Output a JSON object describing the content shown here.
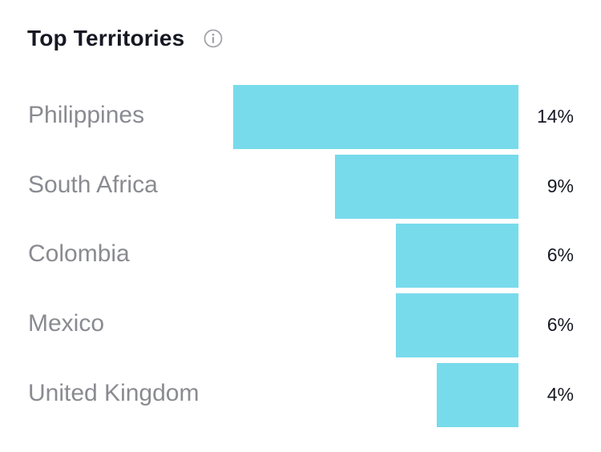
{
  "header": {
    "title": "Top Territories",
    "info_icon": "info-icon"
  },
  "colors": {
    "bar": "#78dbec",
    "label": "#8a8b91",
    "value": "#161823",
    "title": "#161823"
  },
  "chart_data": {
    "type": "bar",
    "orientation": "horizontal",
    "title": "Top Territories",
    "categories": [
      "Philippines",
      "South Africa",
      "Colombia",
      "Mexico",
      "United Kingdom"
    ],
    "values": [
      14,
      9,
      6,
      6,
      4
    ],
    "value_labels": [
      "14%",
      "9%",
      "6%",
      "6%",
      "4%"
    ],
    "unit": "%",
    "xlabel": "",
    "ylabel": "",
    "grid": false,
    "legend": "none"
  }
}
